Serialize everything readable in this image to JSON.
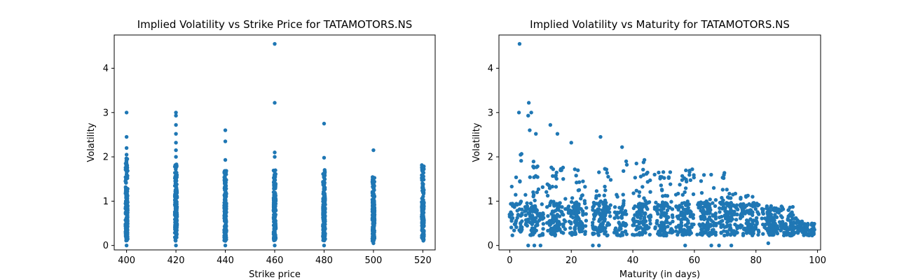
{
  "chart_data": [
    {
      "type": "scatter",
      "title": "Implied Volatility vs Strike Price for TATAMOTORS.NS",
      "xlabel": "Strike price",
      "ylabel": "Volatility",
      "xlim": [
        395,
        525
      ],
      "ylim": [
        -0.1,
        4.75
      ],
      "xticks": [
        400,
        420,
        440,
        460,
        480,
        500,
        520
      ],
      "yticks": [
        0,
        1,
        2,
        3,
        4
      ],
      "grid": false,
      "color": "#1f77b4",
      "strikes": [
        400,
        420,
        440,
        460,
        480,
        500,
        520
      ],
      "strike_max_volatility": [
        1.97,
        1.85,
        1.7,
        1.7,
        1.72,
        1.55,
        1.82
      ],
      "strike_dense_range": [
        [
          0.1,
          1.2
        ],
        [
          0.1,
          1.2
        ],
        [
          0.1,
          1.2
        ],
        [
          0.1,
          1.2
        ],
        [
          0.1,
          1.1
        ],
        [
          0.1,
          1.0
        ],
        [
          0.1,
          1.0
        ]
      ],
      "outliers": [
        [
          400,
          3.0
        ],
        [
          400,
          2.45
        ],
        [
          400,
          2.2
        ],
        [
          400,
          2.05
        ],
        [
          400,
          0.0
        ],
        [
          420,
          3.0
        ],
        [
          420,
          2.93
        ],
        [
          420,
          2.72
        ],
        [
          420,
          2.52
        ],
        [
          420,
          2.32
        ],
        [
          420,
          2.15
        ],
        [
          420,
          2.0
        ],
        [
          420,
          0.0
        ],
        [
          440,
          2.6
        ],
        [
          440,
          2.35
        ],
        [
          440,
          1.93
        ],
        [
          440,
          0.0
        ],
        [
          460,
          4.55
        ],
        [
          460,
          3.22
        ],
        [
          460,
          2.1
        ],
        [
          460,
          2.0
        ],
        [
          460,
          0.0
        ],
        [
          480,
          2.75
        ],
        [
          480,
          1.98
        ],
        [
          480,
          0.0
        ],
        [
          500,
          2.15
        ],
        [
          500,
          0.05
        ],
        [
          520,
          0.15
        ]
      ]
    },
    {
      "type": "scatter",
      "title": "Implied Volatility vs Maturity for TATAMOTORS.NS",
      "xlabel": "Maturity (in days)",
      "ylabel": "Volatility",
      "xlim": [
        -3.5,
        101
      ],
      "ylim": [
        -0.1,
        4.75
      ],
      "xticks": [
        0,
        20,
        40,
        60,
        80,
        100
      ],
      "yticks": [
        0,
        1,
        2,
        3,
        4
      ],
      "grid": false,
      "color": "#1f77b4",
      "maturity_groups": [
        {
          "center": 2,
          "max": 2.15
        },
        {
          "center": 7,
          "max": 2.0
        },
        {
          "center": 9,
          "max": 1.9
        },
        {
          "center": 14,
          "max": 1.85
        },
        {
          "center": 16,
          "max": 1.8
        },
        {
          "center": 21,
          "max": 1.25
        },
        {
          "center": 23,
          "max": 1.8
        },
        {
          "center": 29,
          "max": 1.5
        },
        {
          "center": 31,
          "max": 1.8
        },
        {
          "center": 36,
          "max": 1.9
        },
        {
          "center": 42,
          "max": 1.95
        },
        {
          "center": 44,
          "max": 1.95
        },
        {
          "center": 49,
          "max": 1.75
        },
        {
          "center": 51,
          "max": 1.8
        },
        {
          "center": 56,
          "max": 1.75
        },
        {
          "center": 58,
          "max": 1.75
        },
        {
          "center": 63,
          "max": 1.5
        },
        {
          "center": 65,
          "max": 1.62
        },
        {
          "center": 70,
          "max": 1.72
        },
        {
          "center": 72,
          "max": 1.25
        },
        {
          "center": 77,
          "max": 1.15
        },
        {
          "center": 79,
          "max": 1.05
        },
        {
          "center": 84,
          "max": 0.9
        },
        {
          "center": 86,
          "max": 0.85
        },
        {
          "center": 90,
          "max": 0.9
        },
        {
          "center": 93,
          "max": 0.62
        },
        {
          "center": 97,
          "max": 0.5
        }
      ],
      "outliers": [
        [
          3.2,
          4.55
        ],
        [
          6.2,
          3.22
        ],
        [
          3.0,
          3.0
        ],
        [
          6.0,
          2.93
        ],
        [
          7.0,
          3.0
        ],
        [
          6.5,
          2.6
        ],
        [
          8.5,
          2.52
        ],
        [
          13.2,
          2.72
        ],
        [
          15.5,
          2.52
        ],
        [
          20.0,
          2.32
        ],
        [
          29.5,
          2.45
        ],
        [
          36.5,
          2.22
        ],
        [
          6.0,
          0.0
        ],
        [
          8.0,
          0.0
        ],
        [
          10.0,
          0.0
        ],
        [
          27.0,
          0.0
        ],
        [
          29.0,
          0.0
        ],
        [
          57.0,
          0.0
        ],
        [
          65.5,
          0.0
        ],
        [
          68.0,
          0.0
        ],
        [
          72.0,
          0.0
        ],
        [
          84.0,
          0.05
        ]
      ]
    }
  ]
}
